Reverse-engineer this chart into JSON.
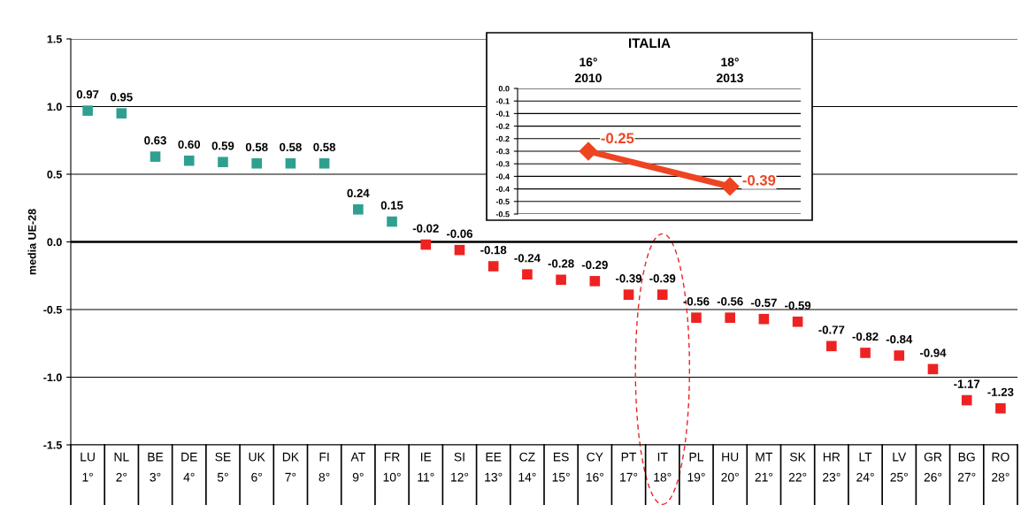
{
  "chart_data": [
    {
      "type": "scatter",
      "ylabel": "media UE-28",
      "categories": [
        "LU\n1°",
        "NL\n2°",
        "BE\n3°",
        "DE\n4°",
        "SE\n5°",
        "UK\n6°",
        "DK\n7°",
        "FI\n8°",
        "AT\n9°",
        "FR\n10°",
        "IE\n11°",
        "SI\n12°",
        "EE\n13°",
        "CZ\n14°",
        "ES\n15°",
        "CY\n16°",
        "PT\n17°",
        "IT\n18°",
        "PL\n19°",
        "HU\n20°",
        "MT\n21°",
        "SK\n22°",
        "HR\n23°",
        "LT\n24°",
        "LV\n25°",
        "GR\n26°",
        "BG\n27°",
        "RO\n28°"
      ],
      "values": [
        0.97,
        0.95,
        0.63,
        0.6,
        0.59,
        0.58,
        0.58,
        0.58,
        0.24,
        0.15,
        -0.02,
        -0.06,
        -0.18,
        -0.24,
        -0.28,
        -0.29,
        -0.39,
        -0.39,
        -0.56,
        -0.56,
        -0.57,
        -0.59,
        -0.77,
        -0.82,
        -0.84,
        -0.94,
        -1.17,
        -1.23
      ],
      "value_labels": [
        "0.97",
        "0.95",
        "0.63",
        "0.60",
        "0.59",
        "0.58",
        "0.58",
        "0.58",
        "0.24",
        "0.15",
        "-0.02",
        "-0.06",
        "-0.18",
        "-0.24",
        "-0.28",
        "-0.29",
        "-0.39",
        "-0.39",
        "-0.56",
        "-0.56",
        "-0.57",
        "-0.59",
        "-0.77",
        "-0.82",
        "-0.84",
        "-0.94",
        "-1.17",
        "-1.23"
      ],
      "colors": [
        "#2fa08f",
        "#2fa08f",
        "#2fa08f",
        "#2fa08f",
        "#2fa08f",
        "#2fa08f",
        "#2fa08f",
        "#2fa08f",
        "#2fa08f",
        "#2fa08f",
        "#ee2222",
        "#ee2222",
        "#ee2222",
        "#ee2222",
        "#ee2222",
        "#ee2222",
        "#ee2222",
        "#ee2222",
        "#ee2222",
        "#ee2222",
        "#ee2222",
        "#ee2222",
        "#ee2222",
        "#ee2222",
        "#ee2222",
        "#ee2222",
        "#ee2222",
        "#ee2222"
      ],
      "ylim": [
        -1.5,
        1.5
      ],
      "yticks": [
        {
          "value": -1.5,
          "label": "-1.5"
        },
        {
          "value": -1.0,
          "label": "-1.0"
        },
        {
          "value": -0.5,
          "label": "-0.5"
        },
        {
          "value": 0,
          "label": "0.0"
        },
        {
          "value": 0.5,
          "label": "0.5"
        },
        {
          "value": 1.0,
          "label": "1.0"
        },
        {
          "value": 1.5,
          "label": "1.5"
        }
      ],
      "marker": "square",
      "grid": "y",
      "legend": false
    },
    {
      "type": "line",
      "title": "ITALIA",
      "categories": [
        "16°\n2010",
        "18°\n2013"
      ],
      "values": [
        -0.25,
        -0.39
      ],
      "color": "#ee4422",
      "marker": "diamond",
      "value_labels": [
        "-0.25",
        "-0.39"
      ],
      "ylim": [
        -0.5,
        0
      ],
      "yticks": [
        {
          "value": 0,
          "label": "0.0"
        },
        {
          "value": -0.05,
          "label": "-0.1"
        },
        {
          "value": -0.1,
          "label": "-0.1"
        },
        {
          "value": -0.15,
          "label": "-0.2"
        },
        {
          "value": -0.2,
          "label": "-0.2"
        },
        {
          "value": -0.25,
          "label": "-0.3"
        },
        {
          "value": -0.3,
          "label": "-0.3"
        },
        {
          "value": -0.35,
          "label": "-0.4"
        },
        {
          "value": -0.4,
          "label": "-0.4"
        },
        {
          "value": -0.45,
          "label": "-0.5"
        },
        {
          "value": -0.5,
          "label": "-0.5"
        }
      ],
      "grid": "y",
      "legend": false
    }
  ]
}
